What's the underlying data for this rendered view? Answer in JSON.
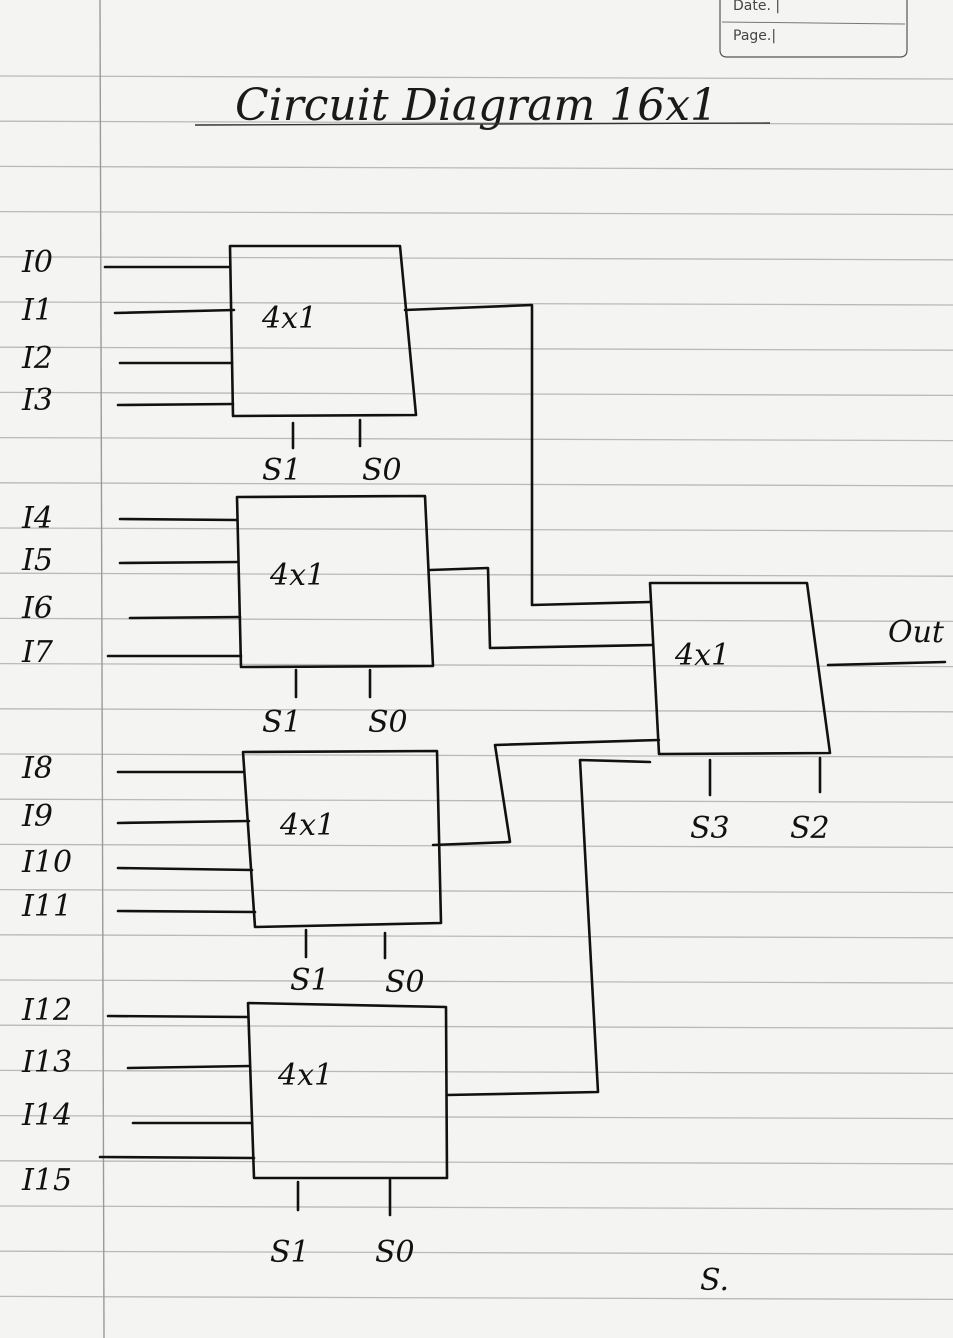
{
  "header_box": {
    "date_label": "Date. |",
    "page_label": "Page.|"
  },
  "title": "Circuit Diagram 16x1",
  "blocks": [
    {
      "label": "4x1",
      "inputs": [
        "I0",
        "I1",
        "I2",
        "I3"
      ],
      "selects": [
        "S1",
        "S0"
      ]
    },
    {
      "label": "4x1",
      "inputs": [
        "I4",
        "I5",
        "I6",
        "I7"
      ],
      "selects": [
        "S1",
        "S0"
      ]
    },
    {
      "label": "4x1",
      "inputs": [
        "I8",
        "I9",
        "I10",
        "I11"
      ],
      "selects": [
        "S1",
        "S0"
      ]
    },
    {
      "label": "4x1",
      "inputs": [
        "I12",
        "I13",
        "I14",
        "I15"
      ],
      "selects": [
        "S1",
        "S0"
      ]
    }
  ],
  "final_block": {
    "label": "4x1",
    "selects": [
      "S3",
      "S2"
    ],
    "output": "Out"
  },
  "signature": "S."
}
